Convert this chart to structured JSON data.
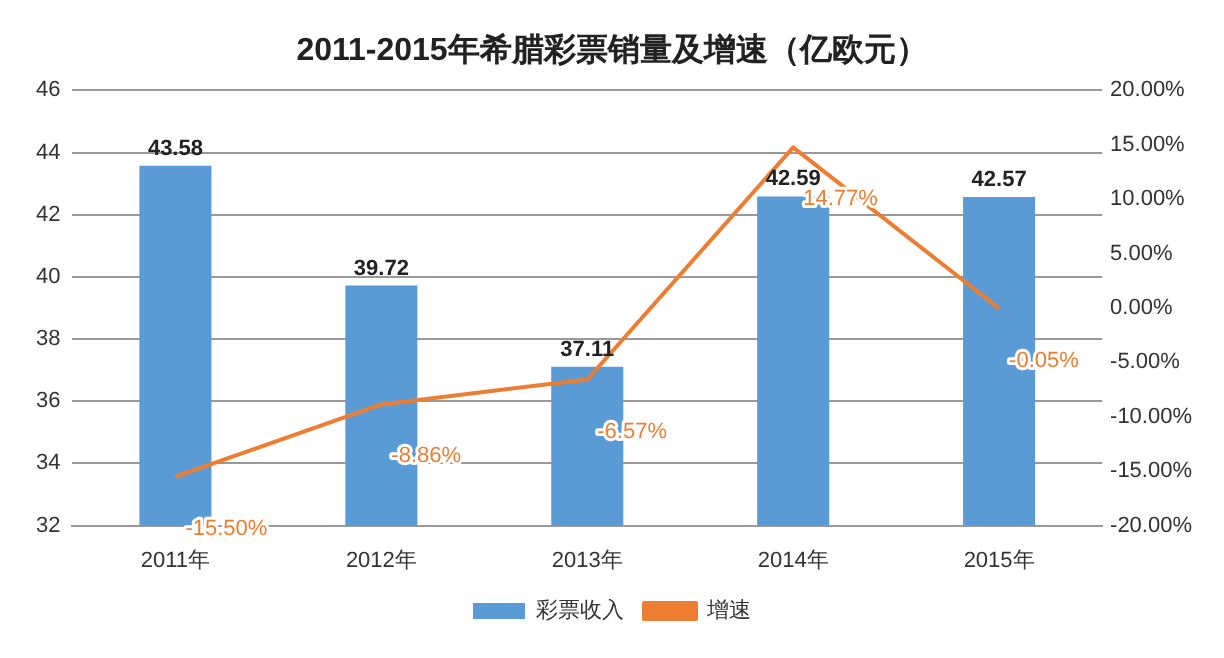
{
  "chart_data": {
    "type": "bar",
    "title": "2011-2015年希腊彩票销量及增速（亿欧元）",
    "categories": [
      "2011年",
      "2012年",
      "2013年",
      "2014年",
      "2015年"
    ],
    "series": [
      {
        "name": "彩票收入",
        "color": "#5b9bd5",
        "values": [
          43.58,
          39.72,
          37.11,
          42.59,
          42.57
        ],
        "value_labels": [
          "43.58",
          "39.72",
          "37.11",
          "42.59",
          "42.57"
        ]
      },
      {
        "name": "增速",
        "type": "line",
        "axis": "y2",
        "color": "#ed7d31",
        "values": [
          -15.5,
          -8.86,
          -6.57,
          14.77,
          -0.05
        ],
        "value_labels": [
          "-15.50%",
          "-8.86%",
          "-6.57%",
          "14.77%",
          "-0.05%"
        ]
      }
    ],
    "ylim": [
      32,
      46
    ],
    "yticks": [
      32,
      34,
      36,
      38,
      40,
      42,
      44,
      46
    ],
    "y2lim": [
      -20,
      20
    ],
    "y2ticks": [
      {
        "value": -20,
        "label": "-20.00%"
      },
      {
        "value": -15,
        "label": "-15.00%"
      },
      {
        "value": -10,
        "label": "-10.00%"
      },
      {
        "value": -5,
        "label": "-5.00%"
      },
      {
        "value": 0,
        "label": "0.00%"
      },
      {
        "value": 5,
        "label": "5.00%"
      },
      {
        "value": 10,
        "label": "10.00%"
      },
      {
        "value": 15,
        "label": "15.00%"
      },
      {
        "value": 20,
        "label": "20.00%"
      }
    ],
    "grid": "y",
    "legend": "bottom",
    "marker": "none",
    "line_style": "solid"
  }
}
